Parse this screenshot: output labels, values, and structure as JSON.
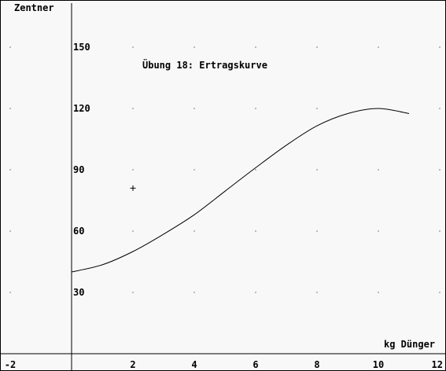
{
  "chart_data": {
    "type": "line",
    "title": "Übung 18: Ertragskurve",
    "xlabel": "kg Dünger",
    "ylabel": "Zentner",
    "xlim": [
      -2,
      12
    ],
    "ylim": [
      -5,
      175
    ],
    "x_ticks": [
      -2,
      2,
      4,
      6,
      8,
      10,
      12
    ],
    "y_ticks": [
      30,
      60,
      90,
      120,
      150
    ],
    "grid": "dots",
    "series": [
      {
        "x": [
          0,
          1,
          2,
          3,
          4,
          5,
          6,
          7,
          8,
          9,
          10,
          11
        ],
        "y": [
          40,
          43.5,
          50,
          58.5,
          68,
          79.5,
          91,
          102,
          111.5,
          117.5,
          120,
          117.5
        ]
      }
    ],
    "markers": [
      {
        "x": 2,
        "y": 81
      }
    ]
  },
  "colors": {
    "background": "#f8f8f8",
    "foreground": "#000000"
  }
}
